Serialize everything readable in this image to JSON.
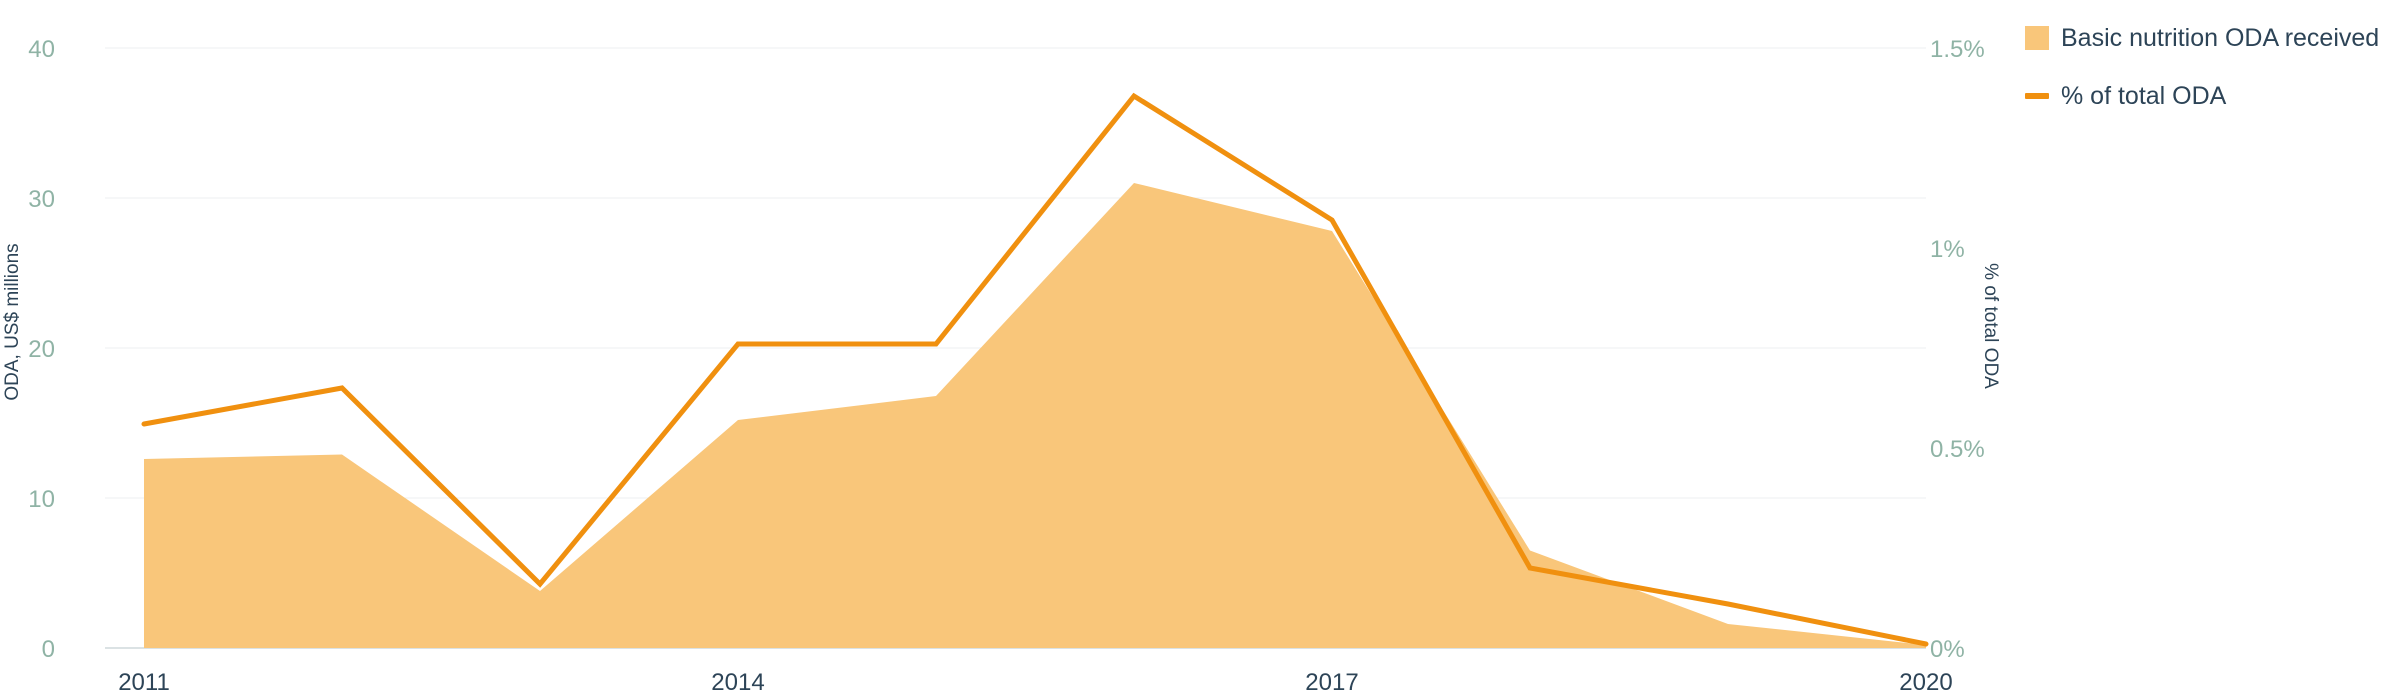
{
  "chart_data": {
    "type": "area+line",
    "title": "",
    "x": [
      2011,
      2012,
      2013,
      2014,
      2015,
      2016,
      2017,
      2018,
      2019,
      2020
    ],
    "x_tick_labels": [
      "2011",
      "2014",
      "2017",
      "2020"
    ],
    "series": [
      {
        "name": "Basic nutrition ODA received",
        "type": "area",
        "axis": "left",
        "color": "#f9c67a",
        "values": [
          12.6,
          12.9,
          3.8,
          15.2,
          16.8,
          31.0,
          27.8,
          6.5,
          1.6,
          0.2
        ]
      },
      {
        "name": "% of total ODA",
        "type": "line",
        "axis": "right",
        "color": "#f0900f",
        "values": [
          0.56,
          0.65,
          0.16,
          0.76,
          0.76,
          1.38,
          1.07,
          0.2,
          0.11,
          0.01
        ]
      }
    ],
    "y_left": {
      "label": "ODA, US$ millions",
      "range": [
        0,
        40
      ],
      "ticks": [
        0,
        10,
        20,
        30,
        40
      ],
      "tick_labels": [
        "0",
        "10",
        "20",
        "30",
        "40"
      ]
    },
    "y_right": {
      "label": "% of total ODA",
      "range": [
        0,
        1.5
      ],
      "ticks": [
        0,
        0.5,
        1,
        1.5
      ],
      "tick_labels": [
        "0%",
        "0.5%",
        "1%",
        "1.5%"
      ]
    },
    "grid": true,
    "legend": {
      "position": "top-right",
      "area_label": "Basic nutrition ODA received",
      "line_label": "% of total ODA"
    }
  }
}
